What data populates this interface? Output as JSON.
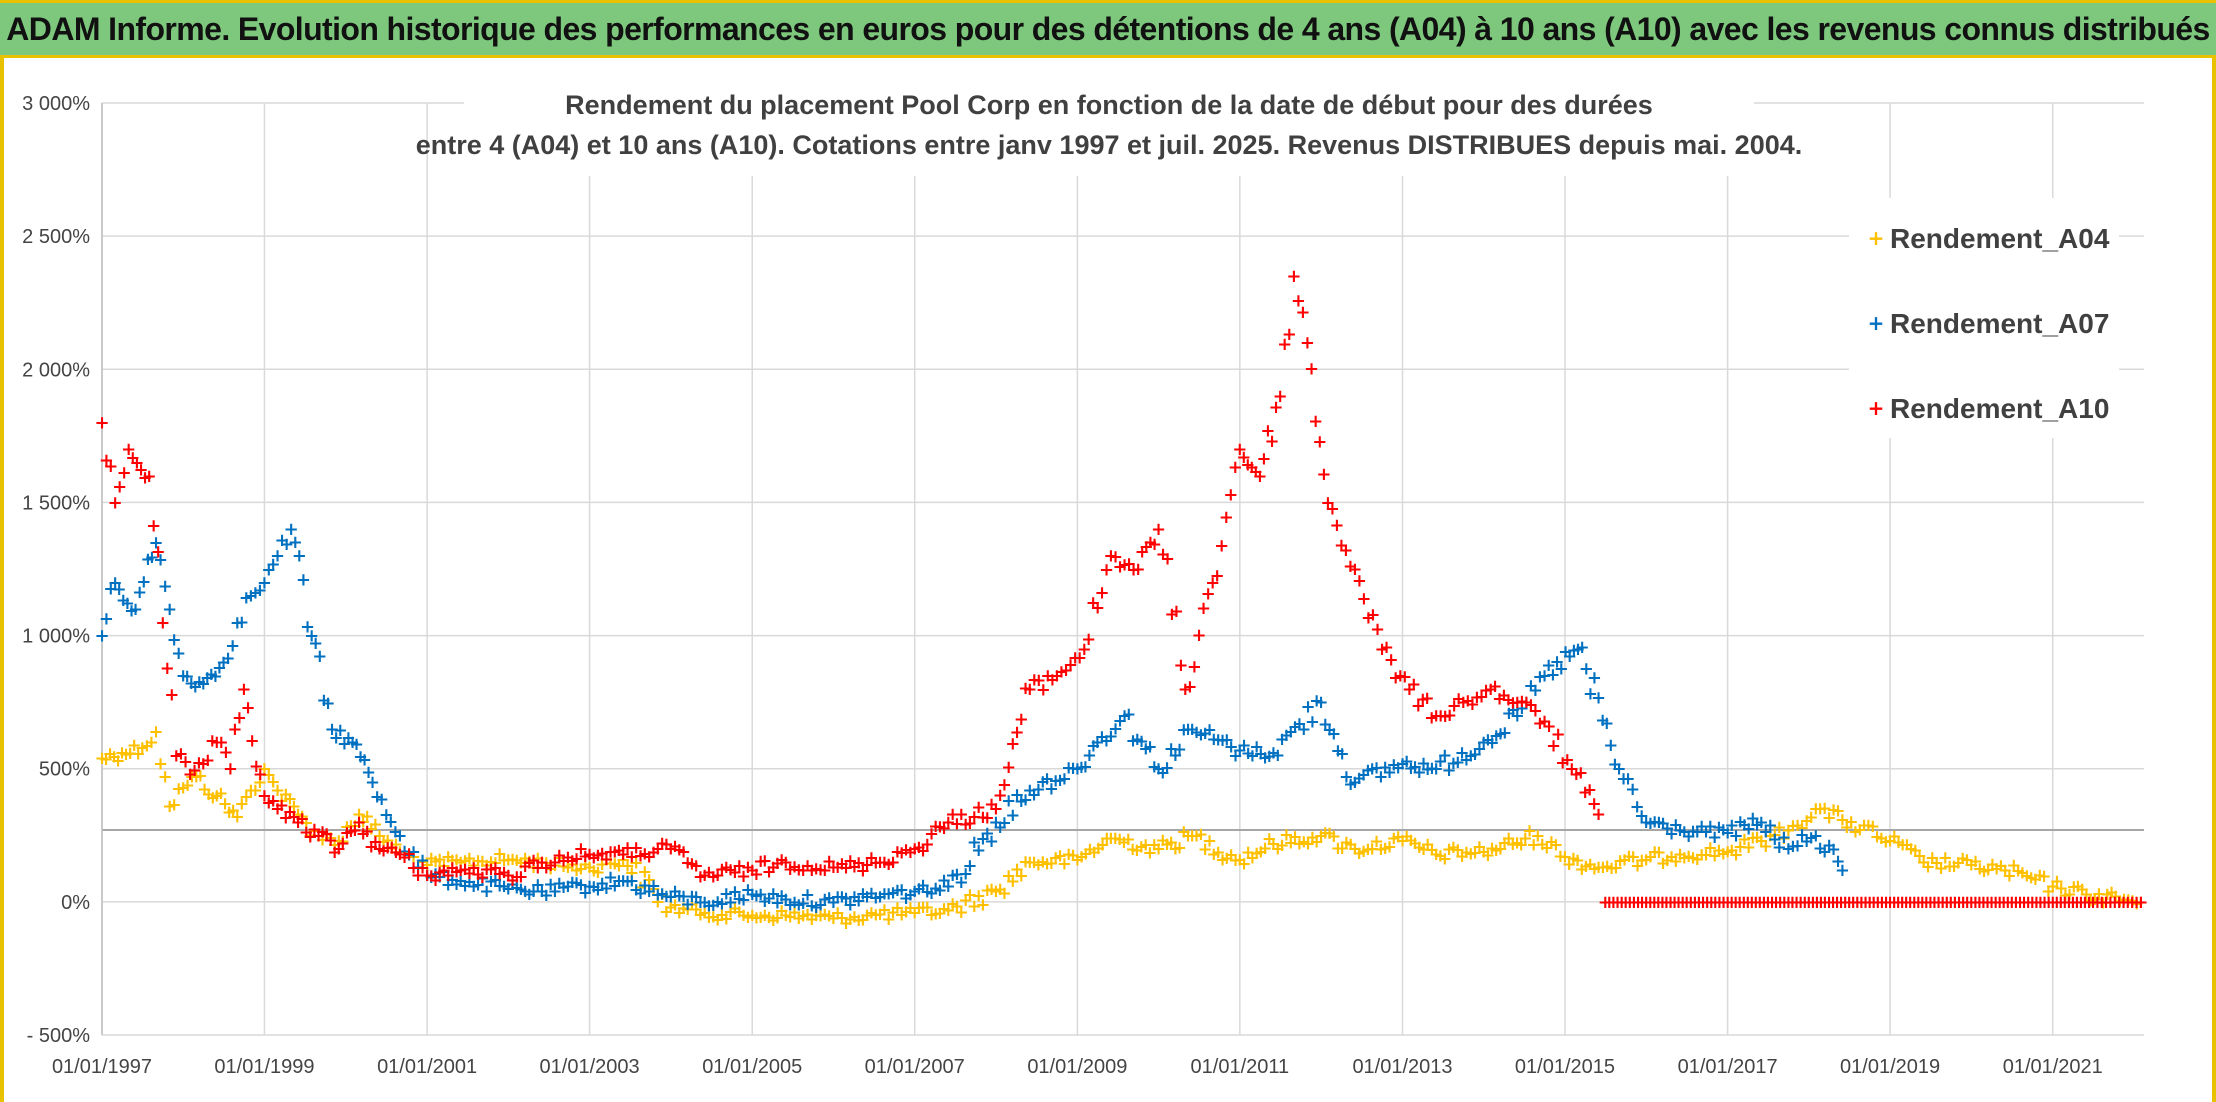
{
  "header": {
    "title": "ADAM Informe. Evolution historique des performances en euros pour des détentions de 4 ans (A04) à 10 ans (A10) avec les revenus connus distribués"
  },
  "colors": {
    "header_bg": "#7dc87d",
    "border": "#e8c200",
    "A04": "#ffc000",
    "A07": "#0070c0",
    "A10": "#ff0000",
    "grid": "#d9d9d9"
  },
  "chart_data": {
    "type": "scatter",
    "title_lines": [
      "Rendement du placement Pool Corp en fonction de la date de début pour des durées",
      "entre 4 (A04) et 10 ans (A10). Cotations entre janv 1997 et juil. 2025. Revenus DISTRIBUES depuis mai. 2004."
    ],
    "x_range": [
      "1997-01-01",
      "2022-02-15"
    ],
    "x_ticks": [
      "01/01/1997",
      "01/01/1999",
      "01/01/2001",
      "01/01/2003",
      "01/01/2005",
      "01/01/2007",
      "01/01/2009",
      "01/01/2011",
      "01/01/2013",
      "01/01/2015",
      "01/01/2017",
      "01/01/2019",
      "01/01/2021"
    ],
    "y_range": [
      -500,
      3000
    ],
    "y_ticks": [
      "- 500%",
      "0%",
      "500%",
      "1 000%",
      "1 500%",
      "2 000%",
      "2 500%",
      "3 000%"
    ],
    "y_tick_values": [
      -500,
      0,
      500,
      1000,
      1500,
      2000,
      2500,
      3000
    ],
    "reference_line": 270,
    "marker": "+",
    "legend_position": "right",
    "series": [
      {
        "name": "Rendement_A04",
        "color": "#ffc000",
        "x": [
          "1997-01-01",
          "1997-04-01",
          "1997-07-01",
          "1997-09-01",
          "1997-11-01",
          "1998-01-01",
          "1998-03-01",
          "1998-06-01",
          "1998-09-01",
          "1998-11-01",
          "1999-01-01",
          "1999-03-01",
          "1999-06-01",
          "1999-09-01",
          "1999-12-01",
          "2000-03-01",
          "2000-06-01",
          "2000-09-01",
          "2001-01-01",
          "2001-06-01",
          "2002-01-01",
          "2002-06-01",
          "2003-01-01",
          "2003-06-01",
          "2004-01-01",
          "2004-06-01",
          "2005-01-01",
          "2005-06-01",
          "2006-01-01",
          "2006-06-01",
          "2007-01-01",
          "2007-06-01",
          "2008-01-01",
          "2008-06-01",
          "2009-01-01",
          "2009-06-01",
          "2010-01-01",
          "2010-06-01",
          "2011-01-01",
          "2011-06-01",
          "2012-01-01",
          "2012-06-01",
          "2013-01-01",
          "2013-06-01",
          "2014-01-01",
          "2014-09-01",
          "2015-01-01",
          "2015-06-01",
          "2016-01-01",
          "2016-06-01",
          "2017-01-01",
          "2017-06-01",
          "2017-10-01",
          "2018-02-01",
          "2018-06-01",
          "2019-01-01",
          "2019-06-01",
          "2020-01-01",
          "2020-06-01",
          "2021-01-01",
          "2021-06-01",
          "2022-02-01"
        ],
        "y": [
          540,
          560,
          580,
          640,
          360,
          430,
          470,
          400,
          320,
          420,
          500,
          420,
          330,
          250,
          230,
          330,
          250,
          190,
          140,
          150,
          160,
          150,
          130,
          160,
          -20,
          -40,
          -50,
          -50,
          -60,
          -50,
          -40,
          -30,
          40,
          150,
          160,
          240,
          200,
          250,
          160,
          220,
          250,
          200,
          230,
          180,
          190,
          250,
          170,
          130,
          160,
          180,
          190,
          230,
          270,
          350,
          310,
          230,
          150,
          140,
          120,
          60,
          30,
          0
        ]
      },
      {
        "name": "Rendement_A07",
        "color": "#0070c0",
        "x": [
          "1997-01-01",
          "1997-03-01",
          "1997-06-01",
          "1997-09-01",
          "1997-11-01",
          "1998-01-01",
          "1998-04-01",
          "1998-07-01",
          "1998-09-01",
          "1998-11-01",
          "1999-01-01",
          "1999-03-01",
          "1999-05-01",
          "1999-08-01",
          "1999-11-01",
          "2000-02-01",
          "2000-05-01",
          "2000-09-01",
          "2001-01-01",
          "2001-06-01",
          "2002-01-01",
          "2002-06-01",
          "2003-01-01",
          "2003-06-01",
          "2004-01-01",
          "2004-06-01",
          "2005-01-01",
          "2005-06-01",
          "2006-01-01",
          "2006-06-01",
          "2007-01-01",
          "2007-06-01",
          "2008-01-01",
          "2008-06-01",
          "2009-01-01",
          "2009-04-01",
          "2009-08-01",
          "2010-01-01",
          "2010-06-01",
          "2011-01-01",
          "2011-06-01",
          "2012-01-01",
          "2012-06-01",
          "2013-01-01",
          "2013-06-01",
          "2014-01-01",
          "2014-06-01",
          "2014-10-01",
          "2015-03-01",
          "2015-09-01",
          "2016-01-01",
          "2016-06-01",
          "2017-01-01",
          "2017-06-01",
          "2017-10-01",
          "2018-02-01",
          "2018-06-01"
        ],
        "y": [
          1000,
          1200,
          1100,
          1350,
          1100,
          850,
          820,
          900,
          1050,
          1150,
          1200,
          1300,
          1400,
          1000,
          650,
          600,
          450,
          250,
          100,
          80,
          50,
          40,
          60,
          80,
          20,
          0,
          30,
          10,
          0,
          20,
          40,
          60,
          300,
          420,
          500,
          600,
          700,
          500,
          650,
          570,
          560,
          750,
          450,
          520,
          500,
          600,
          700,
          850,
          950,
          500,
          300,
          270,
          260,
          300,
          200,
          250,
          120
        ]
      },
      {
        "name": "Rendement_A10",
        "color": "#ff0000",
        "x": [
          "1997-01-01",
          "1997-03-01",
          "1997-05-01",
          "1997-08-01",
          "1997-10-01",
          "1997-12-01",
          "1998-02-01",
          "1998-04-01",
          "1998-06-01",
          "1998-08-01",
          "1998-10-01",
          "1999-01-01",
          "1999-03-01",
          "1999-06-01",
          "1999-09-01",
          "1999-12-01",
          "2000-03-01",
          "2000-06-01",
          "2000-09-01",
          "2001-01-01",
          "2001-06-01",
          "2002-01-01",
          "2002-06-01",
          "2003-01-01",
          "2003-06-01",
          "2004-01-01",
          "2004-06-01",
          "2005-01-01",
          "2005-06-01",
          "2006-01-01",
          "2006-06-01",
          "2007-01-01",
          "2007-06-01",
          "2008-01-01",
          "2008-06-01",
          "2008-10-01",
          "2009-02-01",
          "2009-06-01",
          "2009-10-01",
          "2010-01-01",
          "2010-05-01",
          "2010-09-01",
          "2011-01-01",
          "2011-04-01",
          "2011-07-01",
          "2011-09-01",
          "2011-11-01",
          "2012-02-01",
          "2012-06-01",
          "2012-10-01",
          "2013-02-01",
          "2013-06-01",
          "2013-10-01",
          "2014-02-01",
          "2014-06-01",
          "2014-10-01",
          "2015-02-01",
          "2015-06-01"
        ],
        "y": [
          1800,
          1500,
          1700,
          1600,
          1050,
          550,
          480,
          520,
          600,
          500,
          800,
          400,
          350,
          300,
          250,
          200,
          300,
          200,
          180,
          100,
          120,
          100,
          150,
          180,
          180,
          200,
          100,
          120,
          150,
          130,
          140,
          200,
          300,
          350,
          800,
          850,
          950,
          1300,
          1250,
          1400,
          800,
          1200,
          1700,
          1600,
          1900,
          2350,
          2100,
          1500,
          1250,
          950,
          800,
          700,
          750,
          800,
          750,
          680,
          500,
          330
        ]
      },
      {
        "name": "",
        "color": "#ff0000",
        "x": [
          "2015-07-01",
          "2016-01-01",
          "2016-07-01",
          "2017-01-01",
          "2017-07-01",
          "2018-01-01",
          "2018-07-01",
          "2019-01-01",
          "2019-07-01",
          "2020-01-01",
          "2020-07-01",
          "2021-01-01",
          "2021-07-01",
          "2022-02-01"
        ],
        "y": [
          0,
          0,
          0,
          0,
          0,
          0,
          0,
          0,
          0,
          0,
          0,
          0,
          0,
          0
        ]
      }
    ]
  }
}
